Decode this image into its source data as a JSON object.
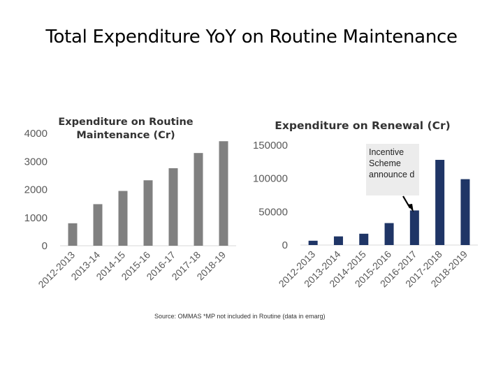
{
  "slide": {
    "title": "Total Expenditure YoY on Routine Maintenance",
    "source_note": "Source: OMMAS *MP not included in Routine (data in emarg)"
  },
  "annotation": {
    "text": "Incentive Scheme announce d"
  },
  "chart_data": [
    {
      "type": "bar",
      "title_lines": [
        "Expenditure on Routine",
        "Maintenance (Cr)"
      ],
      "categories": [
        "2012-2013",
        "2013-14",
        "2014-15",
        "2015-16",
        "2016-17",
        "2017-18",
        "2018-19"
      ],
      "values": [
        800,
        1480,
        1950,
        2330,
        2760,
        3300,
        3720
      ],
      "ylim": [
        0,
        4000
      ],
      "yticks": [
        0,
        1000,
        2000,
        3000,
        4000
      ],
      "bar_color": "#808080",
      "xlabel": "",
      "ylabel": "",
      "grid": false
    },
    {
      "type": "bar",
      "title_lines": [
        "Expenditure on Renewal (Cr)"
      ],
      "categories": [
        "2012-2013",
        "2013-2014",
        "2014-2015",
        "2015-2016",
        "2016-2017",
        "2017-2018",
        "2018-2019"
      ],
      "values": [
        6500,
        13000,
        17000,
        33000,
        52000,
        128000,
        99000
      ],
      "ylim": [
        0,
        150000
      ],
      "yticks": [
        0,
        50000,
        100000,
        150000
      ],
      "bar_color": "#1f3566",
      "xlabel": "",
      "ylabel": "",
      "grid": false
    }
  ]
}
